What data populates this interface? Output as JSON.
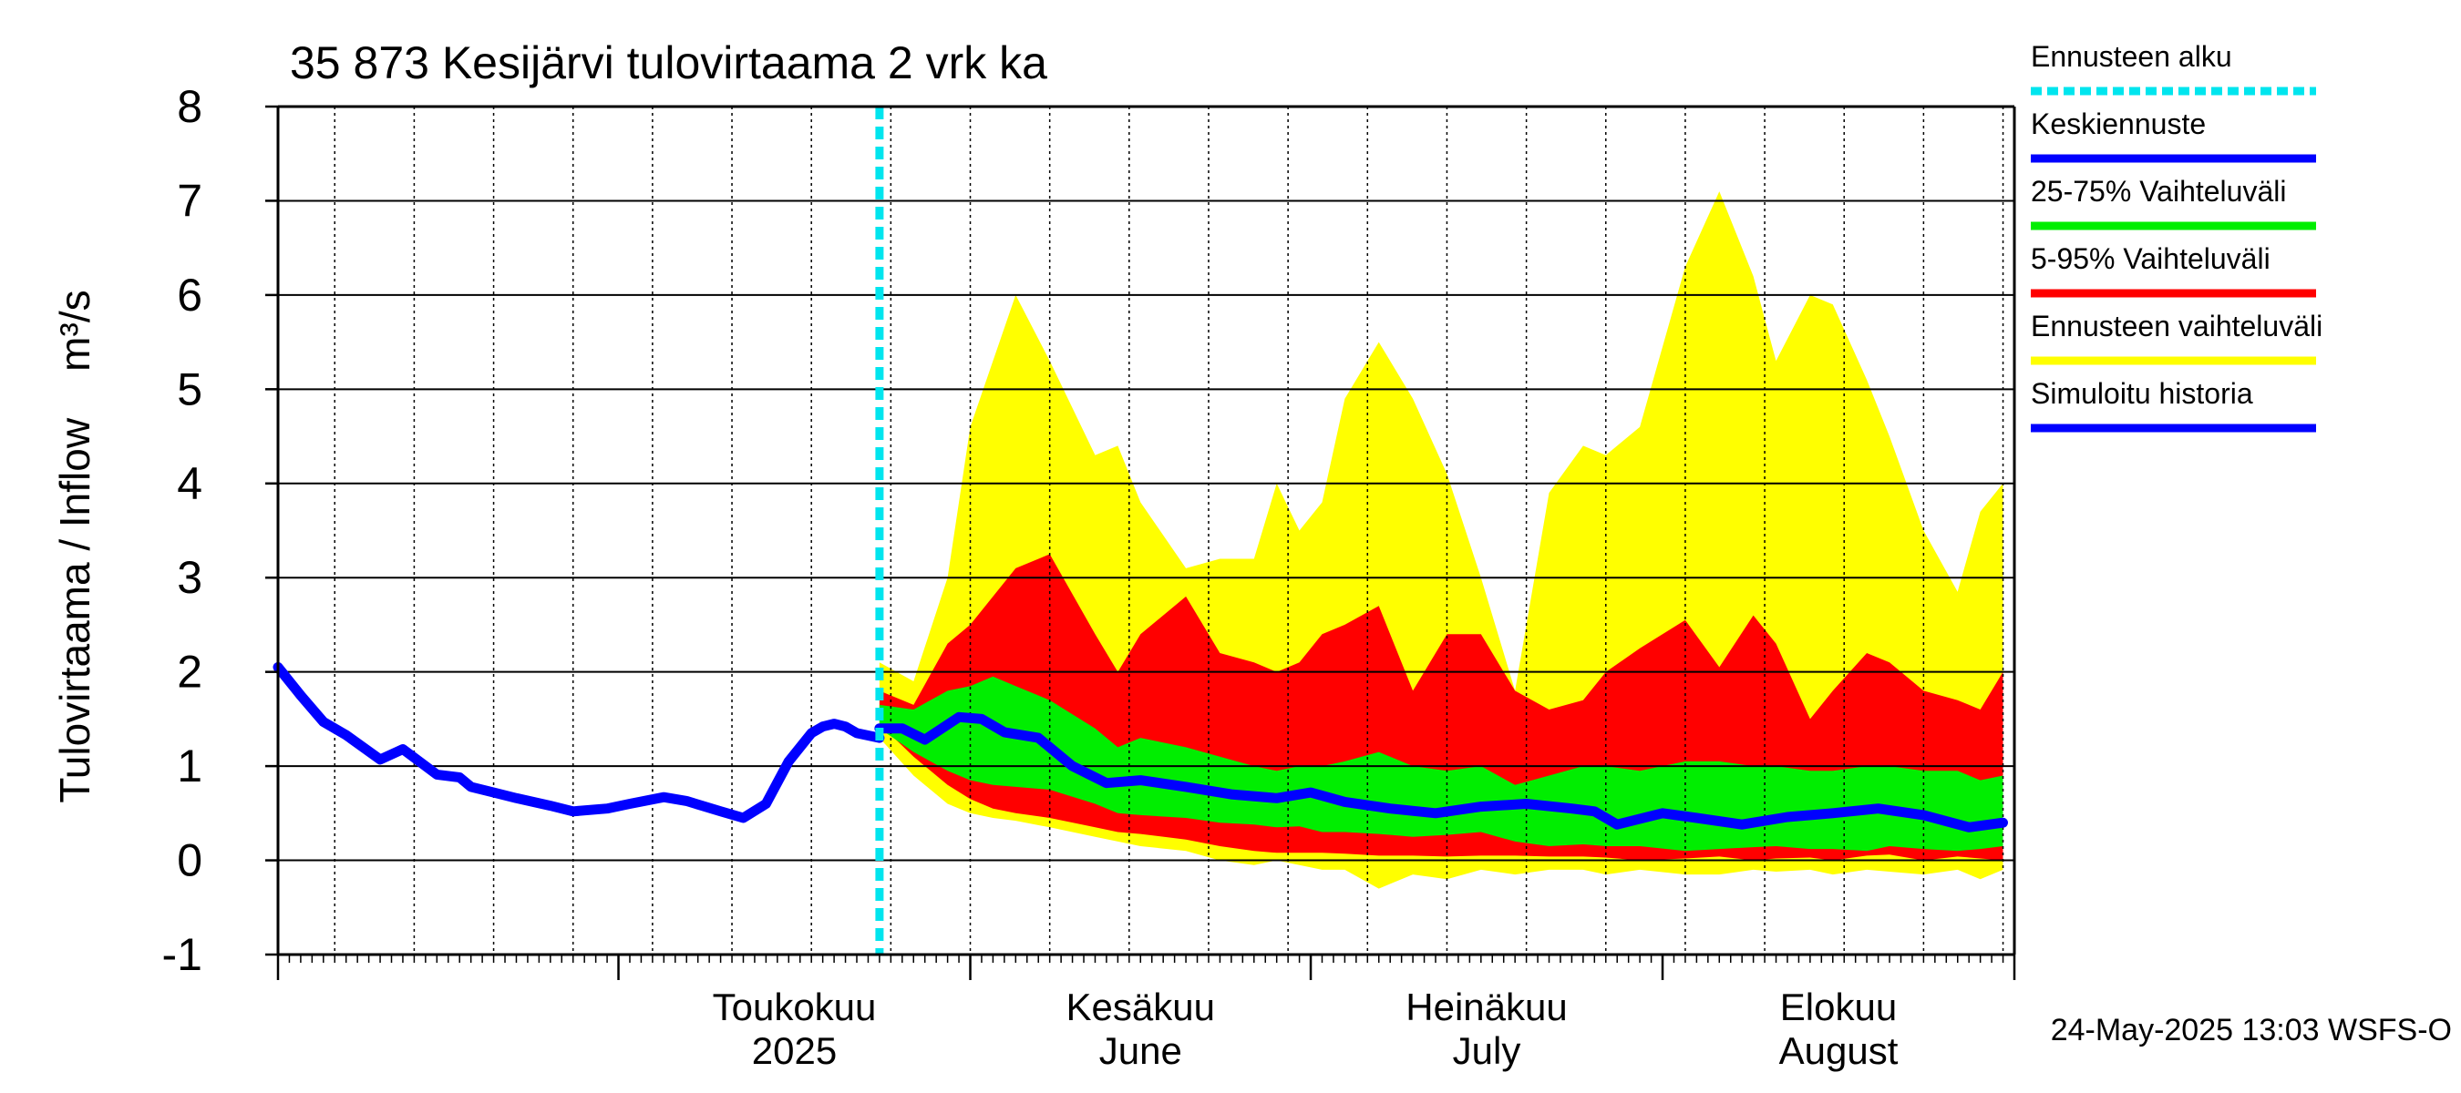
{
  "chart_data": {
    "type": "area",
    "title": "35 873 Kesijärvi tulovirtaama 2 vrk ka",
    "ylabel": "Tulovirtaama / Inflow    m³/s",
    "ylim": [
      -1,
      8
    ],
    "yticks": [
      -1,
      0,
      1,
      2,
      3,
      4,
      5,
      6,
      7,
      8
    ],
    "x_start": "2025-04-01",
    "x_end": "2025-08-31",
    "forecast_start": "2025-05-24",
    "month_labels": [
      {
        "date": "2025-05-01",
        "line1": "Toukokuu",
        "line2": "2025"
      },
      {
        "date": "2025-06-01",
        "line1": "Kesäkuu",
        "line2": "June"
      },
      {
        "date": "2025-07-01",
        "line1": "Heinäkuu",
        "line2": "July"
      },
      {
        "date": "2025-08-01",
        "line1": "Elokuu",
        "line2": "August"
      }
    ],
    "footer": "24-May-2025 13:03 WSFS-O",
    "colors": {
      "forecast_start": "#00e5ee",
      "median": "#0000ff",
      "p25_75": "#00ee00",
      "p5_95": "#ff0000",
      "range": "#ffff00",
      "history": "#0000ff"
    },
    "legend": [
      {
        "label": "Ennusteen alku",
        "color": "#00e5ee",
        "style": "dotted"
      },
      {
        "label": "Keskiennuste",
        "color": "#0000ff",
        "style": "solid"
      },
      {
        "label": "25-75% Vaihteluväli",
        "color": "#00ee00",
        "style": "solid"
      },
      {
        "label": "5-95% Vaihteluväli",
        "color": "#ff0000",
        "style": "solid"
      },
      {
        "label": "Ennusteen vaihteluväli",
        "color": "#ffff00",
        "style": "solid"
      },
      {
        "label": "Simuloitu historia",
        "color": "#0000ff",
        "style": "solid"
      }
    ],
    "series": [
      {
        "name": "Simuloitu historia",
        "x": [
          "2025-04-01",
          "2025-04-03",
          "2025-04-05",
          "2025-04-07",
          "2025-04-10",
          "2025-04-12",
          "2025-04-15",
          "2025-04-17",
          "2025-04-18",
          "2025-04-20",
          "2025-04-22",
          "2025-04-25",
          "2025-04-27",
          "2025-04-30",
          "2025-05-02",
          "2025-05-05",
          "2025-05-07",
          "2025-05-10",
          "2025-05-12",
          "2025-05-14",
          "2025-05-16",
          "2025-05-18",
          "2025-05-19",
          "2025-05-20",
          "2025-05-21",
          "2025-05-22",
          "2025-05-24"
        ],
        "values": [
          2.05,
          1.75,
          1.47,
          1.33,
          1.07,
          1.18,
          0.91,
          0.88,
          0.78,
          0.72,
          0.66,
          0.58,
          0.52,
          0.55,
          0.6,
          0.67,
          0.63,
          0.52,
          0.45,
          0.6,
          1.05,
          1.35,
          1.42,
          1.45,
          1.42,
          1.35,
          1.3
        ]
      },
      {
        "name": "Keskiennuste",
        "x": [
          "2025-05-24",
          "2025-05-26",
          "2025-05-28",
          "2025-05-31",
          "2025-06-02",
          "2025-06-04",
          "2025-06-07",
          "2025-06-10",
          "2025-06-13",
          "2025-06-16",
          "2025-06-20",
          "2025-06-24",
          "2025-06-28",
          "2025-07-01",
          "2025-07-04",
          "2025-07-08",
          "2025-07-12",
          "2025-07-16",
          "2025-07-20",
          "2025-07-24",
          "2025-07-26",
          "2025-07-28",
          "2025-08-01",
          "2025-08-04",
          "2025-08-08",
          "2025-08-12",
          "2025-08-16",
          "2025-08-20",
          "2025-08-24",
          "2025-08-28",
          "2025-08-31"
        ],
        "values": [
          1.4,
          1.4,
          1.28,
          1.52,
          1.5,
          1.36,
          1.3,
          1.0,
          0.82,
          0.85,
          0.78,
          0.7,
          0.66,
          0.72,
          0.62,
          0.55,
          0.5,
          0.57,
          0.6,
          0.55,
          0.52,
          0.38,
          0.5,
          0.45,
          0.38,
          0.46,
          0.5,
          0.55,
          0.48,
          0.35,
          0.4
        ]
      }
    ],
    "bands": [
      {
        "name": "Ennusteen vaihteluväli",
        "x": [
          "2025-05-24",
          "2025-05-27",
          "2025-05-30",
          "2025-06-01",
          "2025-06-03",
          "2025-06-05",
          "2025-06-08",
          "2025-06-12",
          "2025-06-14",
          "2025-06-16",
          "2025-06-20",
          "2025-06-23",
          "2025-06-26",
          "2025-06-28",
          "2025-06-30",
          "2025-07-02",
          "2025-07-04",
          "2025-07-07",
          "2025-07-10",
          "2025-07-13",
          "2025-07-16",
          "2025-07-19",
          "2025-07-22",
          "2025-07-25",
          "2025-07-27",
          "2025-07-30",
          "2025-08-03",
          "2025-08-06",
          "2025-08-09",
          "2025-08-11",
          "2025-08-14",
          "2025-08-16",
          "2025-08-19",
          "2025-08-21",
          "2025-08-24",
          "2025-08-27",
          "2025-08-29",
          "2025-08-31"
        ],
        "upper": [
          2.1,
          1.9,
          3.0,
          4.6,
          5.3,
          6.0,
          5.3,
          4.3,
          4.4,
          3.8,
          3.1,
          3.2,
          3.2,
          4.0,
          3.5,
          3.8,
          4.9,
          5.5,
          4.9,
          4.1,
          3.0,
          1.8,
          3.9,
          4.4,
          4.3,
          4.6,
          6.3,
          7.1,
          6.2,
          5.3,
          6.0,
          5.9,
          5.1,
          4.5,
          3.5,
          2.85,
          3.7,
          4.0
        ],
        "lower": [
          1.3,
          0.9,
          0.6,
          0.5,
          0.45,
          0.42,
          0.35,
          0.25,
          0.2,
          0.15,
          0.1,
          0.0,
          -0.05,
          0.0,
          -0.05,
          -0.1,
          -0.1,
          -0.3,
          -0.15,
          -0.2,
          -0.1,
          -0.15,
          -0.1,
          -0.1,
          -0.15,
          -0.1,
          -0.15,
          -0.15,
          -0.1,
          -0.12,
          -0.1,
          -0.15,
          -0.1,
          -0.12,
          -0.15,
          -0.1,
          -0.2,
          -0.1
        ]
      },
      {
        "name": "5-95% Vaihteluväli",
        "x": [
          "2025-05-24",
          "2025-05-27",
          "2025-05-30",
          "2025-06-01",
          "2025-06-03",
          "2025-06-05",
          "2025-06-08",
          "2025-06-12",
          "2025-06-14",
          "2025-06-16",
          "2025-06-20",
          "2025-06-23",
          "2025-06-26",
          "2025-06-28",
          "2025-06-30",
          "2025-07-02",
          "2025-07-04",
          "2025-07-07",
          "2025-07-10",
          "2025-07-13",
          "2025-07-16",
          "2025-07-19",
          "2025-07-22",
          "2025-07-25",
          "2025-07-27",
          "2025-07-30",
          "2025-08-03",
          "2025-08-06",
          "2025-08-09",
          "2025-08-11",
          "2025-08-14",
          "2025-08-16",
          "2025-08-19",
          "2025-08-21",
          "2025-08-24",
          "2025-08-27",
          "2025-08-29",
          "2025-08-31"
        ],
        "upper": [
          1.8,
          1.65,
          2.3,
          2.5,
          2.8,
          3.1,
          3.25,
          2.4,
          2.0,
          2.4,
          2.8,
          2.2,
          2.1,
          2.0,
          2.1,
          2.4,
          2.5,
          2.7,
          1.8,
          2.4,
          2.4,
          1.8,
          1.6,
          1.7,
          2.0,
          2.25,
          2.55,
          2.05,
          2.6,
          2.3,
          1.5,
          1.8,
          2.2,
          2.1,
          1.8,
          1.7,
          1.6,
          2.0
        ],
        "lower": [
          1.45,
          1.1,
          0.8,
          0.65,
          0.55,
          0.5,
          0.45,
          0.35,
          0.3,
          0.28,
          0.22,
          0.15,
          0.1,
          0.08,
          0.08,
          0.08,
          0.07,
          0.05,
          0.05,
          0.04,
          0.05,
          0.05,
          0.04,
          0.04,
          0.03,
          0.0,
          0.02,
          0.04,
          0.0,
          0.02,
          0.03,
          0.0,
          0.05,
          0.06,
          0.0,
          0.04,
          0.02,
          0.0
        ]
      },
      {
        "name": "25-75% Vaihteluväli",
        "x": [
          "2025-05-24",
          "2025-05-27",
          "2025-05-30",
          "2025-06-01",
          "2025-06-03",
          "2025-06-05",
          "2025-06-08",
          "2025-06-12",
          "2025-06-14",
          "2025-06-16",
          "2025-06-20",
          "2025-06-23",
          "2025-06-26",
          "2025-06-28",
          "2025-06-30",
          "2025-07-02",
          "2025-07-04",
          "2025-07-07",
          "2025-07-10",
          "2025-07-13",
          "2025-07-16",
          "2025-07-19",
          "2025-07-22",
          "2025-07-25",
          "2025-07-27",
          "2025-07-30",
          "2025-08-03",
          "2025-08-06",
          "2025-08-09",
          "2025-08-11",
          "2025-08-14",
          "2025-08-16",
          "2025-08-19",
          "2025-08-21",
          "2025-08-24",
          "2025-08-27",
          "2025-08-29",
          "2025-08-31"
        ],
        "upper": [
          1.65,
          1.6,
          1.8,
          1.85,
          1.95,
          1.85,
          1.7,
          1.4,
          1.2,
          1.3,
          1.2,
          1.1,
          1.0,
          0.95,
          1.0,
          1.0,
          1.05,
          1.15,
          1.0,
          0.95,
          1.0,
          0.8,
          0.9,
          1.0,
          1.0,
          0.95,
          1.05,
          1.05,
          1.0,
          1.0,
          0.95,
          0.95,
          1.0,
          1.0,
          0.95,
          0.95,
          0.85,
          0.9
        ],
        "lower": [
          1.4,
          1.15,
          0.95,
          0.85,
          0.8,
          0.78,
          0.75,
          0.6,
          0.5,
          0.48,
          0.45,
          0.4,
          0.38,
          0.35,
          0.36,
          0.3,
          0.3,
          0.28,
          0.25,
          0.27,
          0.3,
          0.2,
          0.15,
          0.17,
          0.15,
          0.15,
          0.1,
          0.12,
          0.14,
          0.15,
          0.12,
          0.12,
          0.1,
          0.15,
          0.12,
          0.1,
          0.12,
          0.15
        ]
      }
    ]
  }
}
